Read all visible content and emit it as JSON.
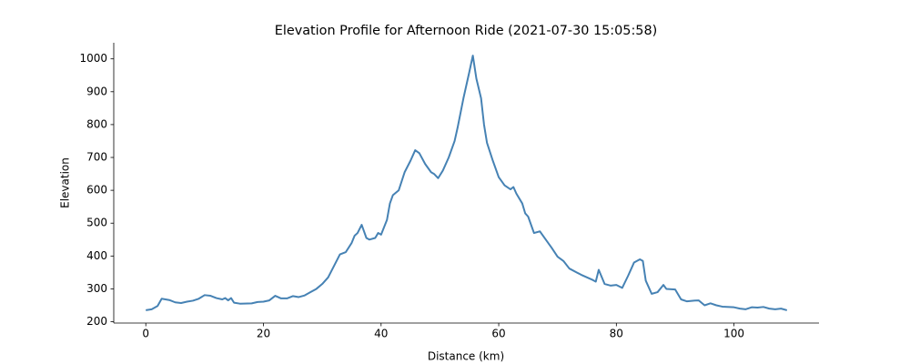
{
  "chart_data": {
    "type": "line",
    "title": "Elevation Profile for Afternoon Ride (2021-07-30 15:05:58)",
    "xlabel": "Distance (km)",
    "ylabel": "Elevation",
    "color": "#4682b4",
    "x": [
      0,
      1,
      2,
      2.7,
      4,
      5,
      6,
      7,
      8,
      9,
      10,
      11,
      12,
      13,
      13.5,
      14,
      14.5,
      15,
      16,
      18,
      19,
      20,
      21,
      22,
      23,
      24,
      25,
      26,
      27,
      28,
      29,
      30,
      31,
      32,
      33,
      34,
      35,
      35.5,
      36,
      36.7,
      37.5,
      38,
      39,
      39.5,
      40,
      41,
      41.5,
      42,
      43,
      44,
      45,
      45.8,
      46.5,
      47.5,
      48.5,
      49,
      49.7,
      50.5,
      51.5,
      52.5,
      53,
      53.5,
      54,
      55,
      55.6,
      56.2,
      57,
      57.5,
      58,
      59,
      60,
      61,
      62,
      62.5,
      63,
      64,
      64.5,
      65,
      66,
      67,
      68,
      69,
      70,
      71,
      72,
      74,
      75,
      76,
      76.5,
      77,
      78,
      79,
      80,
      81,
      82,
      83,
      84,
      84.5,
      85,
      86,
      87,
      88,
      88.5,
      90,
      91,
      92,
      93,
      94,
      95,
      96,
      97,
      98,
      100,
      101,
      102,
      103,
      104,
      105,
      106,
      107,
      108,
      109
    ],
    "values": [
      235,
      238,
      248,
      270,
      266,
      259,
      257,
      261,
      264,
      270,
      281,
      279,
      272,
      268,
      272,
      265,
      272,
      258,
      255,
      256,
      260,
      261,
      265,
      279,
      271,
      271,
      278,
      275,
      280,
      290,
      300,
      315,
      335,
      370,
      405,
      412,
      440,
      462,
      470,
      495,
      455,
      450,
      455,
      470,
      465,
      510,
      560,
      585,
      600,
      655,
      690,
      722,
      713,
      680,
      655,
      650,
      637,
      660,
      700,
      750,
      790,
      835,
      880,
      960,
      1010,
      940,
      880,
      800,
      745,
      690,
      640,
      615,
      603,
      610,
      590,
      560,
      530,
      520,
      470,
      475,
      450,
      425,
      398,
      385,
      362,
      343,
      335,
      327,
      322,
      358,
      315,
      310,
      312,
      303,
      340,
      380,
      390,
      385,
      325,
      285,
      290,
      312,
      300,
      298,
      268,
      262,
      264,
      265,
      250,
      256,
      250,
      246,
      244,
      240,
      238,
      244,
      243,
      245,
      240,
      238,
      240,
      235
    ],
    "xlim": [
      -5.45,
      114.45
    ],
    "ylim": [
      196,
      1049
    ],
    "xticks": [
      0,
      20,
      40,
      60,
      80,
      100
    ],
    "yticks": [
      200,
      300,
      400,
      500,
      600,
      700,
      800,
      900,
      1000
    ]
  }
}
